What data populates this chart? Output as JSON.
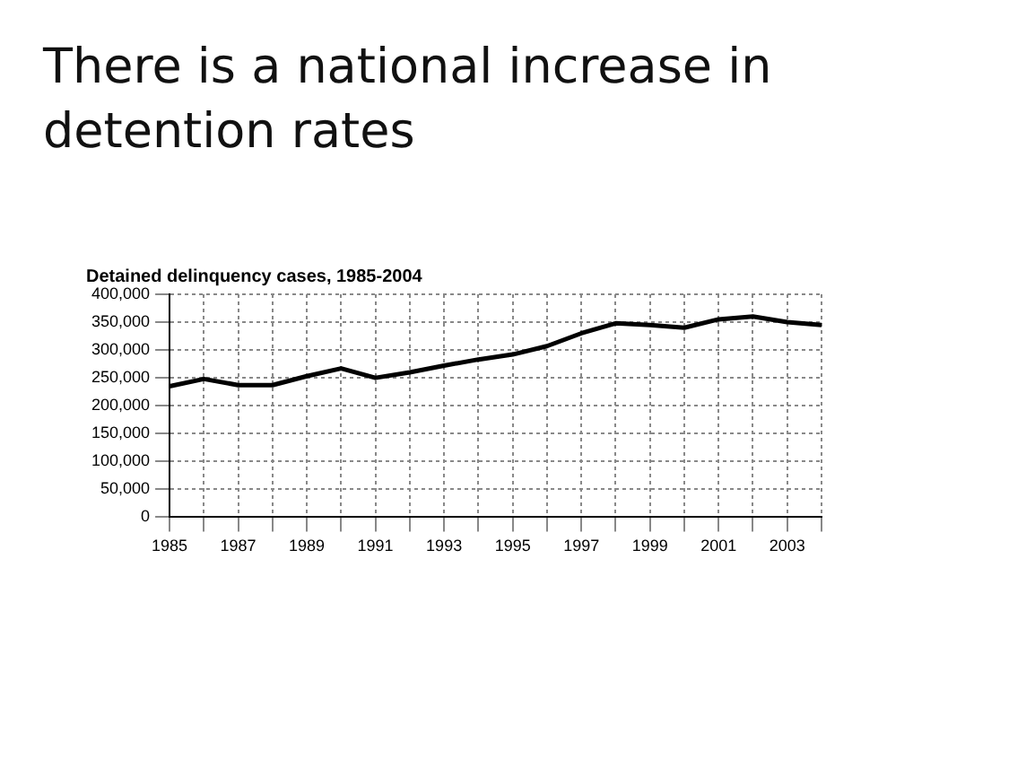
{
  "chart_data": {
    "type": "line",
    "title": "There is a national increase in detention rates",
    "subtitle": "Detained delinquency cases, 1985-2004",
    "categories": [
      "1985",
      null,
      "1987",
      null,
      "1989",
      null,
      "1991",
      null,
      "1993",
      null,
      "1995",
      null,
      "1997",
      null,
      "1999",
      null,
      "2001",
      null,
      "2003",
      null
    ],
    "series": [
      {
        "color": "#000000",
        "values": [
          235000,
          248000,
          237000,
          237000,
          253000,
          267000,
          250000,
          260000,
          272000,
          283000,
          292000,
          307000,
          330000,
          348000,
          345000,
          340000,
          355000,
          360000,
          350000,
          345000
        ]
      }
    ],
    "ylim": [
      0,
      400000
    ],
    "yticks": [
      0,
      {
        "value": 50000,
        "label": "50,000"
      },
      {
        "value": 100000,
        "label": "100,000"
      },
      {
        "value": 150000,
        "label": "150,000"
      },
      {
        "value": 200000,
        "label": "200,000"
      },
      {
        "value": 250000,
        "label": "250,000"
      },
      {
        "value": 300000,
        "label": "300,000"
      },
      {
        "value": 350000,
        "label": "350,000"
      },
      {
        "value": 400000,
        "label": "400,000"
      }
    ],
    "grid": true,
    "legend": false,
    "marker": "none",
    "line_style": "solid"
  }
}
